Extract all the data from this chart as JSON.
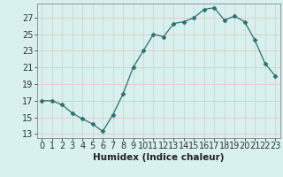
{
  "x": [
    0,
    1,
    2,
    3,
    4,
    5,
    6,
    7,
    8,
    9,
    10,
    11,
    12,
    13,
    14,
    15,
    16,
    17,
    18,
    19,
    20,
    21,
    22,
    23
  ],
  "y": [
    17.0,
    17.0,
    16.5,
    15.5,
    14.8,
    14.2,
    13.3,
    15.3,
    17.8,
    21.0,
    23.0,
    25.0,
    24.7,
    26.3,
    26.5,
    27.0,
    28.0,
    28.2,
    26.7,
    27.2,
    26.5,
    24.3,
    21.5,
    20.0
  ],
  "line_color": "#2e7070",
  "marker": "D",
  "marker_size": 2.5,
  "bg_color": "#d8f0ee",
  "grid_color_h": "#f0c8c8",
  "grid_color_v": "#c8dcd8",
  "xlabel": "Humidex (Indice chaleur)",
  "xlim": [
    -0.5,
    23.5
  ],
  "ylim": [
    12.5,
    28.7
  ],
  "yticks": [
    13,
    15,
    17,
    19,
    21,
    23,
    25,
    27
  ],
  "xticks": [
    0,
    1,
    2,
    3,
    4,
    5,
    6,
    7,
    8,
    9,
    10,
    11,
    12,
    13,
    14,
    15,
    16,
    17,
    18,
    19,
    20,
    21,
    22,
    23
  ],
  "tick_fontsize": 7,
  "xlabel_fontsize": 7.5
}
